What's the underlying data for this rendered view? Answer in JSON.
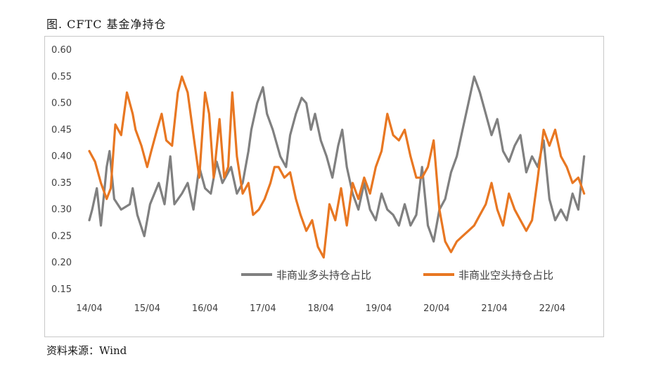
{
  "title": "图. CFTC 基金净持仓",
  "source": "资料来源：Wind",
  "chart_data": {
    "type": "line",
    "ylim": [
      0.15,
      0.6
    ],
    "yticks": [
      "0.60",
      "0.55",
      "0.50",
      "0.45",
      "0.40",
      "0.35",
      "0.30",
      "0.25",
      "0.20",
      "0.15"
    ],
    "xticks": [
      "14/04",
      "15/04",
      "16/04",
      "17/04",
      "18/04",
      "19/04",
      "20/04",
      "21/04",
      "22/04"
    ],
    "legend_position": "bottom-right",
    "series": [
      {
        "name": "非商业多头持仓占比",
        "color": "#808080",
        "points": [
          [
            2014.25,
            0.28
          ],
          [
            2014.3,
            0.3
          ],
          [
            2014.38,
            0.34
          ],
          [
            2014.45,
            0.27
          ],
          [
            2014.55,
            0.38
          ],
          [
            2014.6,
            0.41
          ],
          [
            2014.68,
            0.32
          ],
          [
            2014.8,
            0.3
          ],
          [
            2014.95,
            0.31
          ],
          [
            2015.0,
            0.34
          ],
          [
            2015.08,
            0.29
          ],
          [
            2015.2,
            0.25
          ],
          [
            2015.3,
            0.31
          ],
          [
            2015.45,
            0.35
          ],
          [
            2015.55,
            0.31
          ],
          [
            2015.65,
            0.4
          ],
          [
            2015.72,
            0.31
          ],
          [
            2015.85,
            0.33
          ],
          [
            2015.95,
            0.35
          ],
          [
            2016.05,
            0.3
          ],
          [
            2016.15,
            0.38
          ],
          [
            2016.25,
            0.34
          ],
          [
            2016.35,
            0.33
          ],
          [
            2016.45,
            0.39
          ],
          [
            2016.55,
            0.35
          ],
          [
            2016.7,
            0.38
          ],
          [
            2016.8,
            0.33
          ],
          [
            2016.9,
            0.35
          ],
          [
            2017.0,
            0.41
          ],
          [
            2017.05,
            0.45
          ],
          [
            2017.15,
            0.5
          ],
          [
            2017.25,
            0.53
          ],
          [
            2017.32,
            0.48
          ],
          [
            2017.42,
            0.45
          ],
          [
            2017.55,
            0.4
          ],
          [
            2017.65,
            0.38
          ],
          [
            2017.72,
            0.44
          ],
          [
            2017.82,
            0.48
          ],
          [
            2017.92,
            0.51
          ],
          [
            2018.0,
            0.5
          ],
          [
            2018.08,
            0.45
          ],
          [
            2018.15,
            0.48
          ],
          [
            2018.25,
            0.43
          ],
          [
            2018.35,
            0.4
          ],
          [
            2018.45,
            0.36
          ],
          [
            2018.55,
            0.42
          ],
          [
            2018.62,
            0.45
          ],
          [
            2018.7,
            0.38
          ],
          [
            2018.8,
            0.33
          ],
          [
            2018.9,
            0.3
          ],
          [
            2019.0,
            0.35
          ],
          [
            2019.1,
            0.3
          ],
          [
            2019.2,
            0.28
          ],
          [
            2019.3,
            0.33
          ],
          [
            2019.4,
            0.3
          ],
          [
            2019.5,
            0.29
          ],
          [
            2019.6,
            0.27
          ],
          [
            2019.7,
            0.31
          ],
          [
            2019.8,
            0.27
          ],
          [
            2019.9,
            0.29
          ],
          [
            2020.0,
            0.38
          ],
          [
            2020.1,
            0.27
          ],
          [
            2020.2,
            0.24
          ],
          [
            2020.3,
            0.3
          ],
          [
            2020.4,
            0.32
          ],
          [
            2020.5,
            0.37
          ],
          [
            2020.6,
            0.4
          ],
          [
            2020.7,
            0.45
          ],
          [
            2020.8,
            0.5
          ],
          [
            2020.9,
            0.55
          ],
          [
            2021.0,
            0.52
          ],
          [
            2021.1,
            0.48
          ],
          [
            2021.2,
            0.44
          ],
          [
            2021.3,
            0.47
          ],
          [
            2021.4,
            0.41
          ],
          [
            2021.5,
            0.39
          ],
          [
            2021.6,
            0.42
          ],
          [
            2021.7,
            0.44
          ],
          [
            2021.8,
            0.37
          ],
          [
            2021.9,
            0.4
          ],
          [
            2022.0,
            0.38
          ],
          [
            2022.1,
            0.43
          ],
          [
            2022.2,
            0.32
          ],
          [
            2022.3,
            0.28
          ],
          [
            2022.4,
            0.3
          ],
          [
            2022.5,
            0.28
          ],
          [
            2022.6,
            0.33
          ],
          [
            2022.7,
            0.3
          ],
          [
            2022.8,
            0.4
          ]
        ]
      },
      {
        "name": "非商业空头持仓占比",
        "color": "#E87722",
        "points": [
          [
            2014.25,
            0.41
          ],
          [
            2014.35,
            0.39
          ],
          [
            2014.45,
            0.35
          ],
          [
            2014.55,
            0.32
          ],
          [
            2014.62,
            0.34
          ],
          [
            2014.7,
            0.46
          ],
          [
            2014.8,
            0.44
          ],
          [
            2014.9,
            0.52
          ],
          [
            2015.0,
            0.48
          ],
          [
            2015.05,
            0.45
          ],
          [
            2015.15,
            0.42
          ],
          [
            2015.25,
            0.38
          ],
          [
            2015.32,
            0.41
          ],
          [
            2015.42,
            0.45
          ],
          [
            2015.5,
            0.48
          ],
          [
            2015.58,
            0.43
          ],
          [
            2015.68,
            0.42
          ],
          [
            2015.78,
            0.52
          ],
          [
            2015.85,
            0.55
          ],
          [
            2015.95,
            0.52
          ],
          [
            2016.05,
            0.44
          ],
          [
            2016.15,
            0.36
          ],
          [
            2016.25,
            0.52
          ],
          [
            2016.32,
            0.48
          ],
          [
            2016.4,
            0.36
          ],
          [
            2016.5,
            0.47
          ],
          [
            2016.58,
            0.36
          ],
          [
            2016.65,
            0.38
          ],
          [
            2016.72,
            0.52
          ],
          [
            2016.8,
            0.4
          ],
          [
            2016.9,
            0.33
          ],
          [
            2017.0,
            0.35
          ],
          [
            2017.08,
            0.29
          ],
          [
            2017.18,
            0.3
          ],
          [
            2017.28,
            0.32
          ],
          [
            2017.38,
            0.35
          ],
          [
            2017.45,
            0.38
          ],
          [
            2017.52,
            0.38
          ],
          [
            2017.62,
            0.36
          ],
          [
            2017.72,
            0.37
          ],
          [
            2017.82,
            0.32
          ],
          [
            2017.9,
            0.29
          ],
          [
            2018.0,
            0.26
          ],
          [
            2018.1,
            0.28
          ],
          [
            2018.2,
            0.23
          ],
          [
            2018.3,
            0.21
          ],
          [
            2018.4,
            0.31
          ],
          [
            2018.5,
            0.28
          ],
          [
            2018.6,
            0.34
          ],
          [
            2018.7,
            0.27
          ],
          [
            2018.8,
            0.35
          ],
          [
            2018.9,
            0.32
          ],
          [
            2019.0,
            0.36
          ],
          [
            2019.1,
            0.33
          ],
          [
            2019.2,
            0.38
          ],
          [
            2019.3,
            0.41
          ],
          [
            2019.4,
            0.48
          ],
          [
            2019.5,
            0.44
          ],
          [
            2019.6,
            0.43
          ],
          [
            2019.7,
            0.45
          ],
          [
            2019.8,
            0.4
          ],
          [
            2019.9,
            0.36
          ],
          [
            2020.0,
            0.36
          ],
          [
            2020.1,
            0.38
          ],
          [
            2020.2,
            0.43
          ],
          [
            2020.3,
            0.3
          ],
          [
            2020.4,
            0.24
          ],
          [
            2020.5,
            0.22
          ],
          [
            2020.6,
            0.24
          ],
          [
            2020.7,
            0.25
          ],
          [
            2020.8,
            0.26
          ],
          [
            2020.9,
            0.27
          ],
          [
            2021.0,
            0.29
          ],
          [
            2021.1,
            0.31
          ],
          [
            2021.2,
            0.35
          ],
          [
            2021.3,
            0.3
          ],
          [
            2021.4,
            0.27
          ],
          [
            2021.5,
            0.33
          ],
          [
            2021.6,
            0.3
          ],
          [
            2021.7,
            0.28
          ],
          [
            2021.8,
            0.26
          ],
          [
            2021.9,
            0.28
          ],
          [
            2022.0,
            0.36
          ],
          [
            2022.1,
            0.45
          ],
          [
            2022.2,
            0.42
          ],
          [
            2022.3,
            0.45
          ],
          [
            2022.4,
            0.4
          ],
          [
            2022.5,
            0.38
          ],
          [
            2022.6,
            0.35
          ],
          [
            2022.7,
            0.36
          ],
          [
            2022.8,
            0.33
          ]
        ]
      }
    ]
  }
}
